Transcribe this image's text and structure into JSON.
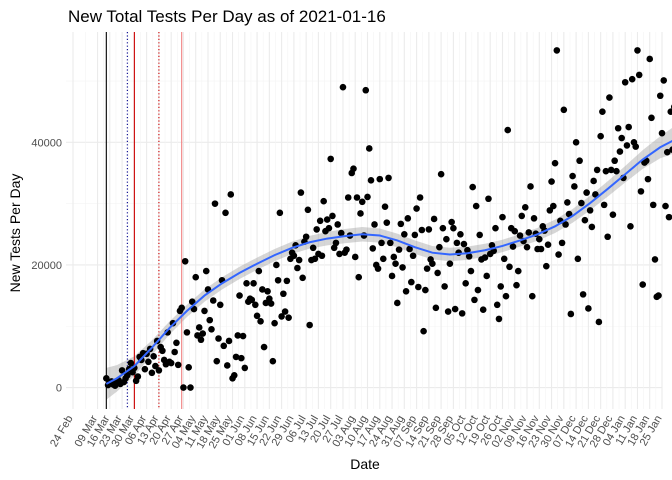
{
  "chart_data": {
    "type": "scatter",
    "title": "New Total Tests Per Day as of 2021-01-16",
    "xlabel": "Date",
    "ylabel": "New Tests Per Day",
    "xlim_day": [
      -4,
      336
    ],
    "ylim": [
      -3500,
      58000
    ],
    "y_ticks": [
      0,
      20000,
      40000
    ],
    "x_tick_days": [
      0,
      14,
      21,
      28,
      35,
      42,
      49,
      56,
      63,
      70,
      77,
      84,
      91,
      98,
      105,
      112,
      119,
      126,
      133,
      140,
      147,
      154,
      161,
      168,
      175,
      182,
      189,
      196,
      203,
      210,
      217,
      224,
      231,
      238,
      245,
      252,
      259,
      266,
      273,
      280,
      287,
      294,
      301,
      308,
      315,
      322,
      329,
      336
    ],
    "x_tick_labels": [
      "24 Feb",
      "09 Mar",
      "16 Mar",
      "23 Mar",
      "30 Mar",
      "06 Apr",
      "13 Apr",
      "20 Apr",
      "27 Apr",
      "04 May",
      "11 May",
      "18 May",
      "25 May",
      "01 Jun",
      "08 Jun",
      "15 Jun",
      "22 Jun",
      "29 Jun",
      "06 Jul",
      "13 Jul",
      "20 Jul",
      "27 Jul",
      "03 Aug",
      "10 Aug",
      "17 Aug",
      "24 Aug",
      "31 Aug",
      "07 Sep",
      "14 Sep",
      "21 Sep",
      "28 Sep",
      "05 Oct",
      "12 Oct",
      "19 Oct",
      "26 Oct",
      "02 Nov",
      "09 Nov",
      "16 Nov",
      "23 Nov",
      "30 Nov",
      "07 Dec",
      "14 Dec",
      "21 Dec",
      "28 Dec",
      "04 Jan",
      "11 Jan",
      "18 Jan",
      "25 Jan"
    ],
    "reference_lines": [
      {
        "day": 19,
        "color": "#000000",
        "style": "solid"
      },
      {
        "day": 31,
        "color": "#00008b",
        "style": "dotted"
      },
      {
        "day": 35,
        "color": "#cc0000",
        "style": "solid"
      },
      {
        "day": 49,
        "color": "#cc0000",
        "style": "dotted"
      },
      {
        "day": 62,
        "color": "#f08080",
        "style": "solid"
      }
    ],
    "points": [
      [
        19,
        1500
      ],
      [
        20,
        400
      ],
      [
        21,
        700
      ],
      [
        22,
        1000
      ],
      [
        23,
        500
      ],
      [
        24,
        300
      ],
      [
        25,
        800
      ],
      [
        26,
        1200
      ],
      [
        27,
        600
      ],
      [
        28,
        2800
      ],
      [
        29,
        900
      ],
      [
        30,
        1500
      ],
      [
        31,
        2000
      ],
      [
        32,
        3000
      ],
      [
        33,
        4000
      ],
      [
        34,
        2500
      ],
      [
        35,
        3200
      ],
      [
        36,
        1100
      ],
      [
        37,
        1800
      ],
      [
        38,
        5000
      ],
      [
        39,
        4500
      ],
      [
        40,
        5600
      ],
      [
        41,
        3000
      ],
      [
        42,
        5500
      ],
      [
        43,
        4200
      ],
      [
        44,
        6300
      ],
      [
        45,
        2400
      ],
      [
        46,
        5100
      ],
      [
        47,
        3500
      ],
      [
        48,
        7600
      ],
      [
        49,
        2800
      ],
      [
        50,
        6600
      ],
      [
        51,
        6000
      ],
      [
        52,
        4500
      ],
      [
        53,
        3800
      ],
      [
        54,
        9000
      ],
      [
        55,
        4200
      ],
      [
        56,
        4000
      ],
      [
        57,
        10500
      ],
      [
        58,
        5800
      ],
      [
        59,
        7300
      ],
      [
        60,
        3700
      ],
      [
        61,
        12500
      ],
      [
        62,
        13000
      ],
      [
        63,
        0
      ],
      [
        64,
        20600
      ],
      [
        65,
        9000
      ],
      [
        66,
        3300
      ],
      [
        67,
        0
      ],
      [
        68,
        14000
      ],
      [
        69,
        12800
      ],
      [
        70,
        18000
      ],
      [
        71,
        8500
      ],
      [
        72,
        9800
      ],
      [
        73,
        7800
      ],
      [
        74,
        8800
      ],
      [
        75,
        12500
      ],
      [
        76,
        19000
      ],
      [
        77,
        16000
      ],
      [
        78,
        11000
      ],
      [
        79,
        9500
      ],
      [
        80,
        14200
      ],
      [
        81,
        30000
      ],
      [
        82,
        4300
      ],
      [
        83,
        8000
      ],
      [
        84,
        13500
      ],
      [
        85,
        17500
      ],
      [
        86,
        6800
      ],
      [
        87,
        28500
      ],
      [
        88,
        3600
      ],
      [
        89,
        7600
      ],
      [
        90,
        31500
      ],
      [
        91,
        1500
      ],
      [
        92,
        2000
      ],
      [
        93,
        5000
      ],
      [
        94,
        8500
      ],
      [
        95,
        15000
      ],
      [
        96,
        4800
      ],
      [
        97,
        8400
      ],
      [
        98,
        3200
      ],
      [
        99,
        17000
      ],
      [
        100,
        14000
      ],
      [
        101,
        14500
      ],
      [
        102,
        14300
      ],
      [
        103,
        17000
      ],
      [
        104,
        13500
      ],
      [
        105,
        11700
      ],
      [
        106,
        19000
      ],
      [
        107,
        10800
      ],
      [
        108,
        16000
      ],
      [
        109,
        6600
      ],
      [
        110,
        13800
      ],
      [
        111,
        15700
      ],
      [
        112,
        14500
      ],
      [
        113,
        13700
      ],
      [
        114,
        4300
      ],
      [
        115,
        10500
      ],
      [
        116,
        20000
      ],
      [
        117,
        17500
      ],
      [
        118,
        28500
      ],
      [
        119,
        11600
      ],
      [
        120,
        15300
      ],
      [
        121,
        12400
      ],
      [
        122,
        17400
      ],
      [
        123,
        11400
      ],
      [
        124,
        21000
      ],
      [
        125,
        22000
      ],
      [
        126,
        21500
      ],
      [
        127,
        23200
      ],
      [
        128,
        19500
      ],
      [
        129,
        20800
      ],
      [
        130,
        31800
      ],
      [
        131,
        17900
      ],
      [
        132,
        23800
      ],
      [
        133,
        24600
      ],
      [
        134,
        29000
      ],
      [
        135,
        10200
      ],
      [
        136,
        20800
      ],
      [
        137,
        22800
      ],
      [
        138,
        21000
      ],
      [
        139,
        25800
      ],
      [
        140,
        21800
      ],
      [
        141,
        27200
      ],
      [
        142,
        21500
      ],
      [
        143,
        30400
      ],
      [
        144,
        25500
      ],
      [
        145,
        27400
      ],
      [
        146,
        26000
      ],
      [
        147,
        37300
      ],
      [
        148,
        28000
      ],
      [
        149,
        22800
      ],
      [
        150,
        23600
      ],
      [
        151,
        26600
      ],
      [
        152,
        21800
      ],
      [
        153,
        25200
      ],
      [
        154,
        49000
      ],
      [
        155,
        22000
      ],
      [
        156,
        22500
      ],
      [
        157,
        31000
      ],
      [
        158,
        24800
      ],
      [
        159,
        35000
      ],
      [
        160,
        35700
      ],
      [
        161,
        21300
      ],
      [
        162,
        31000
      ],
      [
        163,
        18000
      ],
      [
        164,
        28400
      ],
      [
        165,
        30300
      ],
      [
        166,
        24800
      ],
      [
        167,
        48500
      ],
      [
        168,
        31100
      ],
      [
        169,
        39000
      ],
      [
        170,
        33800
      ],
      [
        171,
        22700
      ],
      [
        172,
        26600
      ],
      [
        173,
        20000
      ],
      [
        174,
        19400
      ],
      [
        175,
        34000
      ],
      [
        176,
        23600
      ],
      [
        177,
        21000
      ],
      [
        178,
        29500
      ],
      [
        179,
        26900
      ],
      [
        180,
        34200
      ],
      [
        181,
        23600
      ],
      [
        182,
        18200
      ],
      [
        183,
        21300
      ],
      [
        184,
        20200
      ],
      [
        185,
        13800
      ],
      [
        186,
        22500
      ],
      [
        187,
        26700
      ],
      [
        188,
        19600
      ],
      [
        189,
        25000
      ],
      [
        190,
        15700
      ],
      [
        191,
        27600
      ],
      [
        192,
        22600
      ],
      [
        193,
        17200
      ],
      [
        194,
        21500
      ],
      [
        195,
        24900
      ],
      [
        196,
        29200
      ],
      [
        197,
        16400
      ],
      [
        198,
        31000
      ],
      [
        199,
        25700
      ],
      [
        200,
        9200
      ],
      [
        201,
        15900
      ],
      [
        202,
        19400
      ],
      [
        203,
        25800
      ],
      [
        204,
        20900
      ],
      [
        205,
        20200
      ],
      [
        206,
        27500
      ],
      [
        207,
        13000
      ],
      [
        208,
        18700
      ],
      [
        209,
        22900
      ],
      [
        210,
        34800
      ],
      [
        211,
        26000
      ],
      [
        212,
        16500
      ],
      [
        213,
        24200
      ],
      [
        214,
        12400
      ],
      [
        215,
        20200
      ],
      [
        216,
        27000
      ],
      [
        217,
        26000
      ],
      [
        218,
        12800
      ],
      [
        219,
        23600
      ],
      [
        220,
        22000
      ],
      [
        221,
        25000
      ],
      [
        222,
        12100
      ],
      [
        223,
        23400
      ],
      [
        224,
        17000
      ],
      [
        225,
        22400
      ],
      [
        226,
        21400
      ],
      [
        227,
        19000
      ],
      [
        228,
        32700
      ],
      [
        229,
        14300
      ],
      [
        230,
        29600
      ],
      [
        231,
        15900
      ],
      [
        232,
        24900
      ],
      [
        233,
        20900
      ],
      [
        234,
        12700
      ],
      [
        235,
        21200
      ],
      [
        236,
        18200
      ],
      [
        237,
        30800
      ],
      [
        238,
        21800
      ],
      [
        239,
        23200
      ],
      [
        240,
        22300
      ],
      [
        241,
        26000
      ],
      [
        242,
        13500
      ],
      [
        243,
        11200
      ],
      [
        244,
        16500
      ],
      [
        245,
        27800
      ],
      [
        246,
        21000
      ],
      [
        247,
        14900
      ],
      [
        248,
        42000
      ],
      [
        249,
        19700
      ],
      [
        250,
        26000
      ],
      [
        251,
        23000
      ],
      [
        252,
        25500
      ],
      [
        253,
        16700
      ],
      [
        254,
        19000
      ],
      [
        255,
        24800
      ],
      [
        256,
        28000
      ],
      [
        257,
        23900
      ],
      [
        258,
        29400
      ],
      [
        259,
        22900
      ],
      [
        260,
        25300
      ],
      [
        261,
        32800
      ],
      [
        262,
        14900
      ],
      [
        263,
        27600
      ],
      [
        264,
        25100
      ],
      [
        265,
        22600
      ],
      [
        266,
        24200
      ],
      [
        267,
        22600
      ],
      [
        268,
        26300
      ],
      [
        269,
        25600
      ],
      [
        270,
        19800
      ],
      [
        271,
        23300
      ],
      [
        272,
        28900
      ],
      [
        273,
        33600
      ],
      [
        274,
        29600
      ],
      [
        275,
        36600
      ],
      [
        276,
        55000
      ],
      [
        277,
        21700
      ],
      [
        278,
        27200
      ],
      [
        279,
        23600
      ],
      [
        280,
        45300
      ],
      [
        281,
        26600
      ],
      [
        282,
        30200
      ],
      [
        283,
        28300
      ],
      [
        284,
        12000
      ],
      [
        285,
        34500
      ],
      [
        286,
        32800
      ],
      [
        287,
        40000
      ],
      [
        288,
        21000
      ],
      [
        289,
        37000
      ],
      [
        290,
        30100
      ],
      [
        291,
        15200
      ],
      [
        292,
        27300
      ],
      [
        293,
        31800
      ],
      [
        294,
        12900
      ],
      [
        295,
        28900
      ],
      [
        296,
        26200
      ],
      [
        297,
        33700
      ],
      [
        298,
        31500
      ],
      [
        299,
        35500
      ],
      [
        300,
        10700
      ],
      [
        301,
        41000
      ],
      [
        302,
        45000
      ],
      [
        303,
        29800
      ],
      [
        304,
        35300
      ],
      [
        305,
        24600
      ],
      [
        306,
        47300
      ],
      [
        307,
        35500
      ],
      [
        308,
        28200
      ],
      [
        309,
        37000
      ],
      [
        310,
        35300
      ],
      [
        311,
        42300
      ],
      [
        312,
        38500
      ],
      [
        313,
        40700
      ],
      [
        314,
        34200
      ],
      [
        315,
        49800
      ],
      [
        316,
        39500
      ],
      [
        317,
        42500
      ],
      [
        318,
        26300
      ],
      [
        319,
        50300
      ],
      [
        320,
        40000
      ],
      [
        321,
        39300
      ],
      [
        322,
        55000
      ],
      [
        323,
        51000
      ],
      [
        324,
        32000
      ],
      [
        325,
        16800
      ],
      [
        326,
        36700
      ],
      [
        327,
        37000
      ],
      [
        328,
        34000
      ],
      [
        329,
        53600
      ],
      [
        330,
        44000
      ],
      [
        331,
        29800
      ],
      [
        332,
        20900
      ],
      [
        333,
        14800
      ],
      [
        334,
        15000
      ],
      [
        335,
        47600
      ],
      [
        336,
        41500
      ],
      [
        337,
        50100
      ],
      [
        338,
        29600
      ],
      [
        339,
        38400
      ],
      [
        340,
        27800
      ],
      [
        341,
        45000
      ],
      [
        342,
        38800
      ],
      [
        343,
        45800
      ]
    ],
    "smooth": {
      "line_color": "#3366ff",
      "band_color": "#999999",
      "fit": [
        [
          19,
          600
        ],
        [
          25,
          1500
        ],
        [
          35,
          3500
        ],
        [
          45,
          6500
        ],
        [
          55,
          9700
        ],
        [
          65,
          12500
        ],
        [
          75,
          15000
        ],
        [
          85,
          17000
        ],
        [
          95,
          18700
        ],
        [
          105,
          20200
        ],
        [
          115,
          21600
        ],
        [
          125,
          22800
        ],
        [
          135,
          23700
        ],
        [
          145,
          24300
        ],
        [
          155,
          24700
        ],
        [
          165,
          25000
        ],
        [
          175,
          24800
        ],
        [
          185,
          24000
        ],
        [
          195,
          22900
        ],
        [
          205,
          22000
        ],
        [
          215,
          21700
        ],
        [
          225,
          21900
        ],
        [
          235,
          22400
        ],
        [
          245,
          23100
        ],
        [
          255,
          24000
        ],
        [
          265,
          25000
        ],
        [
          275,
          26300
        ],
        [
          285,
          28000
        ],
        [
          295,
          30100
        ],
        [
          305,
          32400
        ],
        [
          315,
          34800
        ],
        [
          325,
          37200
        ],
        [
          335,
          39200
        ],
        [
          343,
          40400
        ]
      ],
      "halfwidth": [
        [
          19,
          2600
        ],
        [
          30,
          1800
        ],
        [
          45,
          1200
        ],
        [
          60,
          1000
        ],
        [
          80,
          1000
        ],
        [
          100,
          1000
        ],
        [
          130,
          1000
        ],
        [
          160,
          1200
        ],
        [
          190,
          1100
        ],
        [
          220,
          1100
        ],
        [
          250,
          1000
        ],
        [
          280,
          1100
        ],
        [
          300,
          1200
        ],
        [
          320,
          1400
        ],
        [
          335,
          1800
        ],
        [
          343,
          2200
        ]
      ]
    }
  }
}
